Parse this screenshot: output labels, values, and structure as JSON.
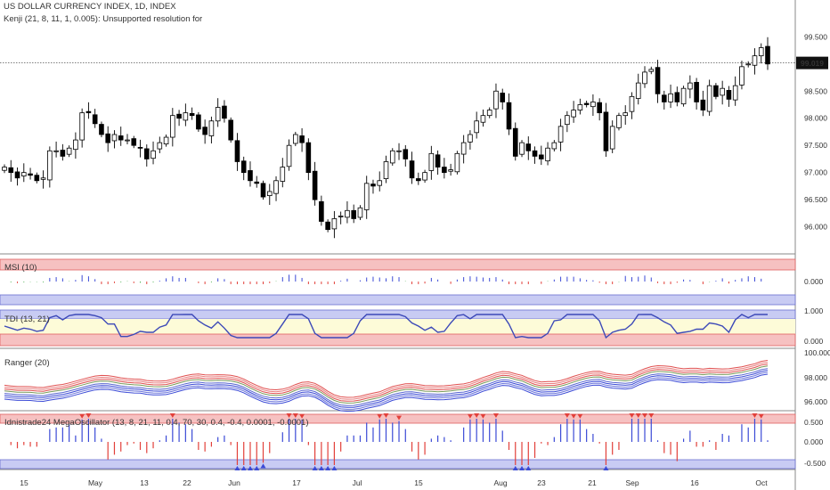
{
  "header": {
    "title": "US DOLLAR CURRENCY INDEX, 1D, INDEX",
    "indicator": "Kenji (21, 8, 11, 1, 0.005): Unsupported resolution for"
  },
  "price_tag": "99.019",
  "panels": {
    "msi": {
      "label": "MSI (10)",
      "ticks": [
        "0.000"
      ]
    },
    "tdi": {
      "label": "TDI (13, 21)",
      "ticks": [
        "1.000",
        "0.000"
      ]
    },
    "ranger": {
      "label": "Ranger (20)",
      "ticks": [
        "100.000",
        "98.000",
        "96.000"
      ]
    },
    "mega": {
      "label": "Idnistrade24 MegaOscillator (13, 8, 21, 11, 0.4, 70, 30, 0.4, -0.4, 0.0001, -0.0001)",
      "ticks": [
        "0.500",
        "0.000",
        "-0.500"
      ]
    }
  },
  "colors": {
    "up": "#ffffff",
    "down": "#000000",
    "band_red": "#f6c1c1",
    "band_blue": "#c8cbf3",
    "band_yellow": "#fdfbd8",
    "tdi_line": "#3c49b8",
    "msi_bar": "#3b4ad6",
    "osc_pos": "#3b4ad6",
    "osc_neg": "#e2403a"
  },
  "chart_data": {
    "type": "candlestick",
    "title": "US DOLLAR CURRENCY INDEX, 1D, INDEX",
    "ylim": [
      95.55,
      99.85
    ],
    "y_ticks": [
      "99.500",
      "99.000",
      "98.500",
      "98.000",
      "97.500",
      "97.000",
      "96.500",
      "96.000"
    ],
    "x_tick_labels": [
      "15",
      "May",
      "13",
      "22",
      "Jun",
      "17",
      "Jul",
      "15",
      "Aug",
      "23",
      "21",
      "Sep",
      "16",
      "Oct"
    ],
    "last_price": 99.019,
    "closes": [
      97.1,
      97.0,
      96.9,
      97.0,
      96.95,
      96.85,
      96.9,
      97.4,
      97.4,
      97.3,
      97.45,
      97.6,
      98.1,
      98.1,
      97.9,
      97.7,
      97.55,
      97.7,
      97.6,
      97.6,
      97.5,
      97.45,
      97.25,
      97.4,
      97.55,
      97.65,
      98.05,
      98.0,
      98.1,
      98.05,
      97.8,
      97.7,
      97.95,
      98.2,
      98.0,
      97.6,
      97.2,
      97.0,
      96.85,
      96.8,
      96.55,
      96.65,
      96.85,
      97.1,
      97.5,
      97.7,
      97.55,
      97.0,
      96.5,
      96.1,
      95.95,
      96.15,
      96.2,
      96.3,
      96.15,
      96.35,
      96.8,
      96.75,
      96.85,
      97.2,
      97.4,
      97.4,
      97.25,
      96.9,
      96.85,
      97.0,
      97.35,
      97.1,
      97.0,
      97.05,
      97.35,
      97.55,
      97.7,
      97.95,
      98.05,
      98.15,
      98.5,
      98.3,
      97.8,
      97.3,
      97.55,
      97.4,
      97.3,
      97.25,
      97.45,
      97.55,
      97.85,
      98.05,
      98.15,
      98.25,
      98.25,
      98.3,
      98.1,
      97.4,
      97.85,
      98.05,
      98.1,
      98.4,
      98.65,
      98.85,
      98.9,
      98.45,
      98.3,
      98.45,
      98.3,
      98.55,
      98.65,
      98.3,
      98.15,
      98.6,
      98.4,
      98.55,
      98.35,
      98.6,
      98.95,
      99.0,
      99.15,
      99.3,
      99.0
    ]
  },
  "x_axis": {
    "labels": [
      "15",
      "May",
      "13",
      "22",
      "Jun",
      "17",
      "Jul",
      "15",
      "Aug",
      "23",
      "21",
      "Sep",
      "16",
      "Oct"
    ]
  }
}
